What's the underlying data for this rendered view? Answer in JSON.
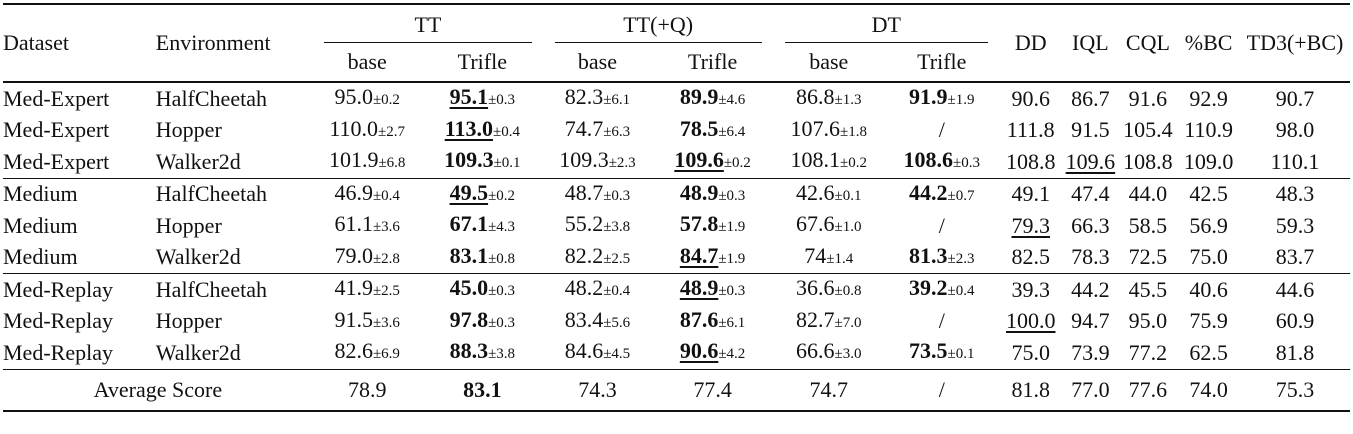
{
  "header": {
    "dataset": "Dataset",
    "environment": "Environment",
    "groups": [
      "TT",
      "TT(+Q)",
      "DT"
    ],
    "sub": [
      "base",
      "Trifle",
      "base",
      "Trifle",
      "base",
      "Trifle"
    ],
    "others": [
      "DD",
      "IQL",
      "CQL",
      "%BC",
      "TD3(+BC)"
    ]
  },
  "sections": [
    [
      {
        "dataset": "Med-Expert",
        "env": "HalfCheetah",
        "cells": [
          {
            "v": "95.0",
            "sd": "±0.2"
          },
          {
            "v": "95.1",
            "sd": "±0.3",
            "b": true,
            "u": true
          },
          {
            "v": "82.3",
            "sd": "±6.1"
          },
          {
            "v": "89.9",
            "sd": "±4.6",
            "b": true
          },
          {
            "v": "86.8",
            "sd": "±1.3"
          },
          {
            "v": "91.9",
            "sd": "±1.9",
            "b": true
          }
        ],
        "others": [
          {
            "v": "90.6"
          },
          {
            "v": "86.7"
          },
          {
            "v": "91.6"
          },
          {
            "v": "92.9"
          },
          {
            "v": "90.7"
          }
        ]
      },
      {
        "dataset": "Med-Expert",
        "env": "Hopper",
        "cells": [
          {
            "v": "110.0",
            "sd": "±2.7"
          },
          {
            "v": "113.0",
            "sd": "±0.4",
            "b": true,
            "u": true
          },
          {
            "v": "74.7",
            "sd": "±6.3"
          },
          {
            "v": "78.5",
            "sd": "±6.4",
            "b": true
          },
          {
            "v": "107.6",
            "sd": "±1.8"
          },
          {
            "v": "/"
          }
        ],
        "others": [
          {
            "v": "111.8"
          },
          {
            "v": "91.5"
          },
          {
            "v": "105.4"
          },
          {
            "v": "110.9"
          },
          {
            "v": "98.0"
          }
        ]
      },
      {
        "dataset": "Med-Expert",
        "env": "Walker2d",
        "cells": [
          {
            "v": "101.9",
            "sd": "±6.8"
          },
          {
            "v": "109.3",
            "sd": "±0.1",
            "b": true
          },
          {
            "v": "109.3",
            "sd": "±2.3"
          },
          {
            "v": "109.6",
            "sd": "±0.2",
            "b": true,
            "u": true
          },
          {
            "v": "108.1",
            "sd": "±0.2"
          },
          {
            "v": "108.6",
            "sd": "±0.3",
            "b": true
          }
        ],
        "others": [
          {
            "v": "108.8"
          },
          {
            "v": "109.6",
            "u": true
          },
          {
            "v": "108.8"
          },
          {
            "v": "109.0"
          },
          {
            "v": "110.1"
          }
        ]
      }
    ],
    [
      {
        "dataset": "Medium",
        "env": "HalfCheetah",
        "cells": [
          {
            "v": "46.9",
            "sd": "±0.4"
          },
          {
            "v": "49.5",
            "sd": "±0.2",
            "b": true,
            "u": true
          },
          {
            "v": "48.7",
            "sd": "±0.3"
          },
          {
            "v": "48.9",
            "sd": "±0.3",
            "b": true
          },
          {
            "v": "42.6",
            "sd": "±0.1"
          },
          {
            "v": "44.2",
            "sd": "±0.7",
            "b": true
          }
        ],
        "others": [
          {
            "v": "49.1"
          },
          {
            "v": "47.4"
          },
          {
            "v": "44.0"
          },
          {
            "v": "42.5"
          },
          {
            "v": "48.3"
          }
        ]
      },
      {
        "dataset": "Medium",
        "env": "Hopper",
        "cells": [
          {
            "v": "61.1",
            "sd": "±3.6"
          },
          {
            "v": "67.1",
            "sd": "±4.3",
            "b": true
          },
          {
            "v": "55.2",
            "sd": "±3.8"
          },
          {
            "v": "57.8",
            "sd": "±1.9",
            "b": true
          },
          {
            "v": "67.6",
            "sd": "±1.0"
          },
          {
            "v": "/"
          }
        ],
        "others": [
          {
            "v": "79.3",
            "u": true
          },
          {
            "v": "66.3"
          },
          {
            "v": "58.5"
          },
          {
            "v": "56.9"
          },
          {
            "v": "59.3"
          }
        ]
      },
      {
        "dataset": "Medium",
        "env": "Walker2d",
        "cells": [
          {
            "v": "79.0",
            "sd": "±2.8"
          },
          {
            "v": "83.1",
            "sd": "±0.8",
            "b": true
          },
          {
            "v": "82.2",
            "sd": "±2.5"
          },
          {
            "v": "84.7",
            "sd": "±1.9",
            "b": true,
            "u": true
          },
          {
            "v": "74",
            "sd": "±1.4"
          },
          {
            "v": "81.3",
            "sd": "±2.3",
            "b": true
          }
        ],
        "others": [
          {
            "v": "82.5"
          },
          {
            "v": "78.3"
          },
          {
            "v": "72.5"
          },
          {
            "v": "75.0"
          },
          {
            "v": "83.7"
          }
        ]
      }
    ],
    [
      {
        "dataset": "Med-Replay",
        "env": "HalfCheetah",
        "cells": [
          {
            "v": "41.9",
            "sd": "±2.5"
          },
          {
            "v": "45.0",
            "sd": "±0.3",
            "b": true
          },
          {
            "v": "48.2",
            "sd": "±0.4"
          },
          {
            "v": "48.9",
            "sd": "±0.3",
            "b": true,
            "u": true
          },
          {
            "v": "36.6",
            "sd": "±0.8"
          },
          {
            "v": "39.2",
            "sd": "±0.4",
            "b": true
          }
        ],
        "others": [
          {
            "v": "39.3"
          },
          {
            "v": "44.2"
          },
          {
            "v": "45.5"
          },
          {
            "v": "40.6"
          },
          {
            "v": "44.6"
          }
        ]
      },
      {
        "dataset": "Med-Replay",
        "env": "Hopper",
        "cells": [
          {
            "v": "91.5",
            "sd": "±3.6"
          },
          {
            "v": "97.8",
            "sd": "±0.3",
            "b": true
          },
          {
            "v": "83.4",
            "sd": "±5.6"
          },
          {
            "v": "87.6",
            "sd": "±6.1",
            "b": true
          },
          {
            "v": "82.7",
            "sd": "±7.0"
          },
          {
            "v": "/"
          }
        ],
        "others": [
          {
            "v": "100.0",
            "u": true
          },
          {
            "v": "94.7"
          },
          {
            "v": "95.0"
          },
          {
            "v": "75.9"
          },
          {
            "v": "60.9"
          }
        ]
      },
      {
        "dataset": "Med-Replay",
        "env": "Walker2d",
        "cells": [
          {
            "v": "82.6",
            "sd": "±6.9"
          },
          {
            "v": "88.3",
            "sd": "±3.8",
            "b": true
          },
          {
            "v": "84.6",
            "sd": "±4.5"
          },
          {
            "v": "90.6",
            "sd": "±4.2",
            "b": true,
            "u": true
          },
          {
            "v": "66.6",
            "sd": "±3.0"
          },
          {
            "v": "73.5",
            "sd": "±0.1",
            "b": true
          }
        ],
        "others": [
          {
            "v": "75.0"
          },
          {
            "v": "73.9"
          },
          {
            "v": "77.2"
          },
          {
            "v": "62.5"
          },
          {
            "v": "81.8"
          }
        ]
      }
    ]
  ],
  "average": {
    "label": "Average Score",
    "cells": [
      {
        "v": "78.9"
      },
      {
        "v": "83.1",
        "b": true
      },
      {
        "v": "74.3"
      },
      {
        "v": "77.4"
      },
      {
        "v": "74.7"
      },
      {
        "v": "/"
      }
    ],
    "others": [
      {
        "v": "81.8"
      },
      {
        "v": "77.0"
      },
      {
        "v": "77.6"
      },
      {
        "v": "74.0"
      },
      {
        "v": "75.3"
      }
    ]
  }
}
